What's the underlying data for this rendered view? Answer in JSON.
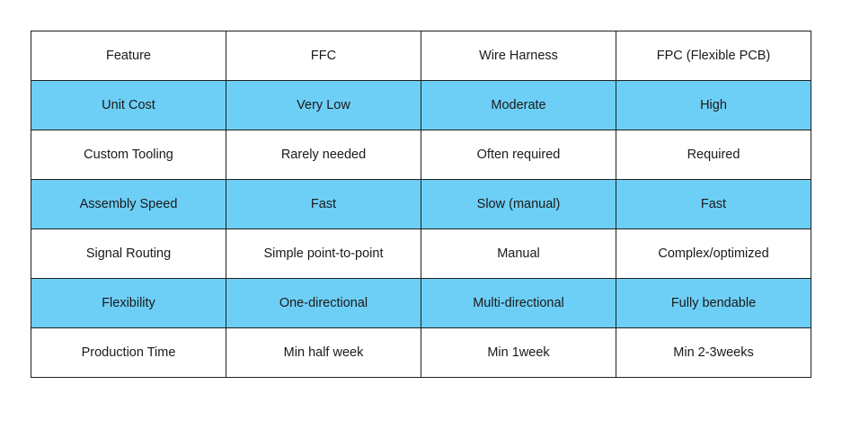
{
  "table": {
    "headers": [
      "Feature",
      "FFC",
      "Wire Harness",
      "FPC (Flexible PCB)"
    ],
    "rows": [
      [
        "Unit Cost",
        "Very Low",
        "Moderate",
        "High"
      ],
      [
        "Custom Tooling",
        "Rarely needed",
        "Often required",
        "Required"
      ],
      [
        "Assembly Speed",
        "Fast",
        "Slow (manual)",
        "Fast"
      ],
      [
        "Signal Routing",
        "Simple point-to-point",
        "Manual",
        "Complex/optimized"
      ],
      [
        "Flexibility",
        "One-directional",
        "Multi-directional",
        "Fully bendable"
      ],
      [
        "Production Time",
        "Min half week",
        "Min 1week",
        "Min 2-3weeks"
      ]
    ],
    "colors": {
      "shaded_row": "#6ecff6",
      "plain_row": "#ffffff",
      "border": "#1f1f1f"
    }
  }
}
